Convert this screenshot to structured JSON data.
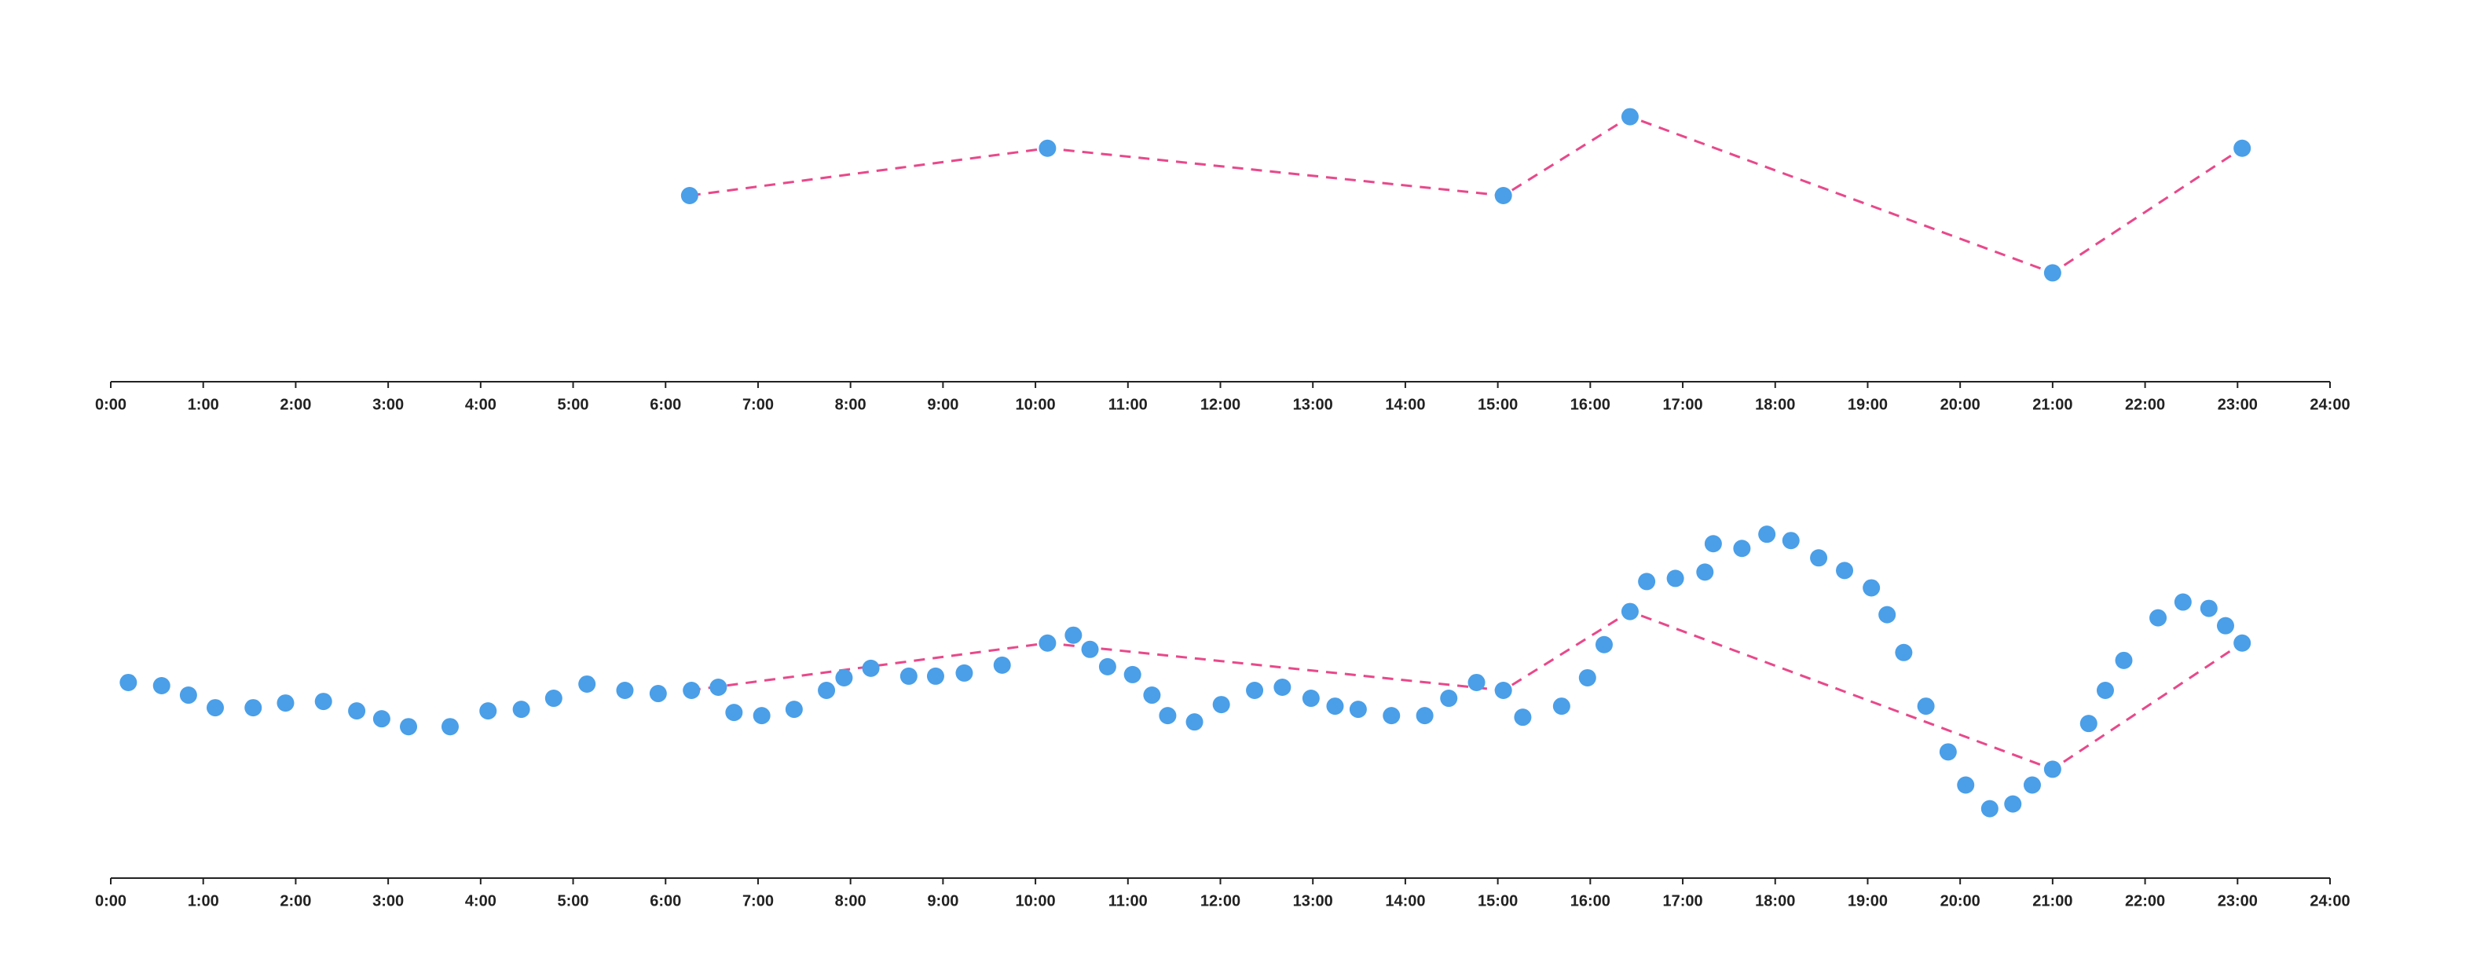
{
  "chart_data": [
    {
      "type": "scatter",
      "xlim": [
        0,
        24
      ],
      "xticks": [
        {
          "value": 0,
          "label": "0:00"
        },
        {
          "value": 1,
          "label": "1:00"
        },
        {
          "value": 2,
          "label": "2:00"
        },
        {
          "value": 3,
          "label": "3:00"
        },
        {
          "value": 4,
          "label": "4:00"
        },
        {
          "value": 5,
          "label": "5:00"
        },
        {
          "value": 6,
          "label": "6:00"
        },
        {
          "value": 7,
          "label": "7:00"
        },
        {
          "value": 8,
          "label": "8:00"
        },
        {
          "value": 9,
          "label": "9:00"
        },
        {
          "value": 10,
          "label": "10:00"
        },
        {
          "value": 11,
          "label": "11:00"
        },
        {
          "value": 12,
          "label": "12:00"
        },
        {
          "value": 13,
          "label": "13:00"
        },
        {
          "value": 14,
          "label": "14:00"
        },
        {
          "value": 15,
          "label": "15:00"
        },
        {
          "value": 16,
          "label": "16:00"
        },
        {
          "value": 17,
          "label": "17:00"
        },
        {
          "value": 18,
          "label": "18:00"
        },
        {
          "value": 19,
          "label": "19:00"
        },
        {
          "value": 20,
          "label": "20:00"
        },
        {
          "value": 21,
          "label": "21:00"
        },
        {
          "value": 22,
          "label": "22:00"
        },
        {
          "value": 23,
          "label": "23:00"
        },
        {
          "value": 24,
          "label": "24:00"
        }
      ],
      "ylim": [
        0,
        240
      ],
      "series": [
        {
          "mode": "lines+markers",
          "color": "#4a9fe8",
          "line_color": "#e8498a",
          "dashed": true,
          "x": [
            6.26,
            10.13,
            15.06,
            16.43,
            21.0,
            23.05
          ],
          "values": [
            118,
            148,
            118,
            168,
            69,
            148
          ]
        }
      ]
    },
    {
      "type": "scatter",
      "xlim": [
        0,
        24
      ],
      "xticks": [
        {
          "value": 0,
          "label": "0:00"
        },
        {
          "value": 1,
          "label": "1:00"
        },
        {
          "value": 2,
          "label": "2:00"
        },
        {
          "value": 3,
          "label": "3:00"
        },
        {
          "value": 4,
          "label": "4:00"
        },
        {
          "value": 5,
          "label": "5:00"
        },
        {
          "value": 6,
          "label": "6:00"
        },
        {
          "value": 7,
          "label": "7:00"
        },
        {
          "value": 8,
          "label": "8:00"
        },
        {
          "value": 9,
          "label": "9:00"
        },
        {
          "value": 10,
          "label": "10:00"
        },
        {
          "value": 11,
          "label": "11:00"
        },
        {
          "value": 12,
          "label": "12:00"
        },
        {
          "value": 13,
          "label": "13:00"
        },
        {
          "value": 14,
          "label": "14:00"
        },
        {
          "value": 15,
          "label": "15:00"
        },
        {
          "value": 16,
          "label": "16:00"
        },
        {
          "value": 17,
          "label": "17:00"
        },
        {
          "value": 18,
          "label": "18:00"
        },
        {
          "value": 19,
          "label": "19:00"
        },
        {
          "value": 20,
          "label": "20:00"
        },
        {
          "value": 21,
          "label": "21:00"
        },
        {
          "value": 22,
          "label": "22:00"
        },
        {
          "value": 23,
          "label": "23:00"
        },
        {
          "value": 24,
          "label": "24:00"
        }
      ],
      "ylim": [
        0,
        240
      ],
      "series": [
        {
          "mode": "markers",
          "color": "#4a9fe8",
          "x": [
            0.19,
            0.55,
            0.84,
            1.13,
            1.54,
            1.89,
            2.3,
            2.66,
            2.93,
            3.22,
            3.67,
            4.08,
            4.44,
            4.79,
            5.15,
            5.56,
            5.92,
            6.28,
            6.57,
            6.74,
            7.04,
            7.39,
            7.74,
            7.93,
            8.22,
            8.63,
            8.92,
            9.23,
            9.64,
            10.13,
            10.41,
            10.59,
            10.78,
            11.05,
            11.26,
            11.43,
            11.72,
            12.01,
            12.37,
            12.67,
            12.98,
            13.24,
            13.49,
            13.85,
            14.21,
            14.47,
            14.77,
            15.06,
            15.27,
            15.69,
            15.97,
            16.15,
            16.43,
            16.61,
            16.92,
            17.24,
            17.33,
            17.64,
            17.91,
            18.17,
            18.47,
            18.75,
            19.04,
            19.21,
            19.39,
            19.63,
            19.87,
            20.06,
            20.32,
            20.57,
            20.78,
            21.0,
            21.39,
            21.57,
            21.77,
            22.14,
            22.41,
            22.69,
            22.87,
            23.05
          ],
          "values": [
            124,
            122,
            116,
            108,
            108,
            111,
            112,
            106,
            101,
            96,
            96,
            106,
            107,
            114,
            123,
            119,
            117,
            119,
            121,
            105,
            103,
            107,
            119,
            127,
            133,
            128,
            128,
            130,
            135,
            149,
            154,
            145,
            134,
            129,
            116,
            103,
            99,
            110,
            119,
            121,
            114,
            109,
            107,
            103,
            103,
            114,
            124,
            119,
            102,
            109,
            127,
            148,
            169,
            188,
            190,
            194,
            212,
            209,
            218,
            214,
            203,
            195,
            184,
            167,
            143,
            109,
            80,
            59,
            44,
            47,
            59,
            69,
            98,
            119,
            138,
            165,
            175,
            171,
            160,
            149
          ]
        },
        {
          "mode": "lines",
          "line_color": "#e8498a",
          "dashed": true,
          "x": [
            6.26,
            10.13,
            15.06,
            16.43,
            21.0,
            23.05
          ],
          "values": [
            119,
            149,
            119,
            169,
            69,
            149
          ]
        }
      ]
    }
  ]
}
